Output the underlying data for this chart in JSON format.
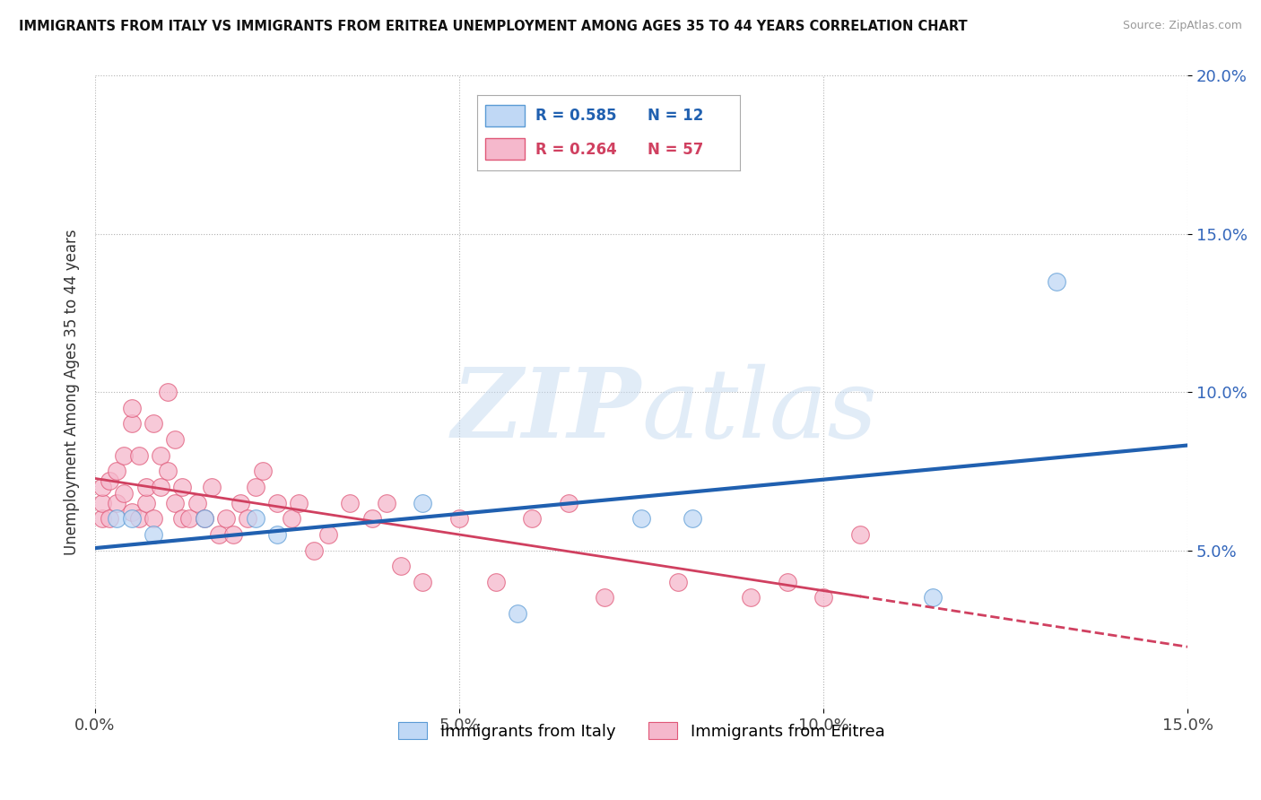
{
  "title": "IMMIGRANTS FROM ITALY VS IMMIGRANTS FROM ERITREA UNEMPLOYMENT AMONG AGES 35 TO 44 YEARS CORRELATION CHART",
  "source": "Source: ZipAtlas.com",
  "ylabel": "Unemployment Among Ages 35 to 44 years",
  "xlim": [
    0.0,
    0.15
  ],
  "ylim": [
    0.0,
    0.2
  ],
  "xticks": [
    0.0,
    0.05,
    0.1,
    0.15
  ],
  "xtick_labels": [
    "0.0%",
    "5.0%",
    "10.0%",
    "15.0%"
  ],
  "yticks": [
    0.05,
    0.1,
    0.15,
    0.2
  ],
  "ytick_labels": [
    "5.0%",
    "10.0%",
    "15.0%",
    "20.0%"
  ],
  "italy_R": 0.585,
  "italy_N": 12,
  "eritrea_R": 0.264,
  "eritrea_N": 57,
  "italy_color": "#c0d8f5",
  "eritrea_color": "#f5b8cc",
  "italy_edge_color": "#5b9bd5",
  "eritrea_edge_color": "#e05878",
  "italy_line_color": "#2060b0",
  "eritrea_line_color": "#d04060",
  "bg_color": "#ffffff",
  "italy_x": [
    0.003,
    0.005,
    0.008,
    0.015,
    0.022,
    0.025,
    0.045,
    0.058,
    0.075,
    0.082,
    0.115,
    0.132
  ],
  "italy_y": [
    0.06,
    0.06,
    0.055,
    0.06,
    0.06,
    0.055,
    0.065,
    0.03,
    0.06,
    0.06,
    0.035,
    0.135
  ],
  "eritrea_x": [
    0.001,
    0.001,
    0.001,
    0.002,
    0.002,
    0.003,
    0.003,
    0.004,
    0.004,
    0.005,
    0.005,
    0.005,
    0.006,
    0.006,
    0.007,
    0.007,
    0.008,
    0.008,
    0.009,
    0.009,
    0.01,
    0.01,
    0.011,
    0.011,
    0.012,
    0.012,
    0.013,
    0.014,
    0.015,
    0.016,
    0.017,
    0.018,
    0.019,
    0.02,
    0.021,
    0.022,
    0.023,
    0.025,
    0.027,
    0.028,
    0.03,
    0.032,
    0.035,
    0.038,
    0.04,
    0.042,
    0.045,
    0.05,
    0.055,
    0.06,
    0.065,
    0.07,
    0.08,
    0.09,
    0.095,
    0.1,
    0.105
  ],
  "eritrea_y": [
    0.06,
    0.065,
    0.07,
    0.072,
    0.06,
    0.065,
    0.075,
    0.068,
    0.08,
    0.062,
    0.09,
    0.095,
    0.06,
    0.08,
    0.065,
    0.07,
    0.06,
    0.09,
    0.07,
    0.08,
    0.075,
    0.1,
    0.065,
    0.085,
    0.06,
    0.07,
    0.06,
    0.065,
    0.06,
    0.07,
    0.055,
    0.06,
    0.055,
    0.065,
    0.06,
    0.07,
    0.075,
    0.065,
    0.06,
    0.065,
    0.05,
    0.055,
    0.065,
    0.06,
    0.065,
    0.045,
    0.04,
    0.06,
    0.04,
    0.06,
    0.065,
    0.035,
    0.04,
    0.035,
    0.04,
    0.035,
    0.055
  ]
}
